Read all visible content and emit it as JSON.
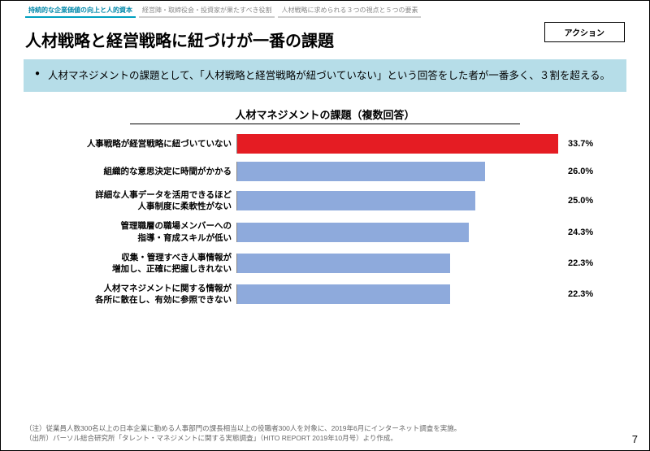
{
  "tabs": [
    {
      "label": "持続的な企業価値の向上と人的資本",
      "active": true
    },
    {
      "label": "経営陣・取締役会・投資家が果たすべき役割",
      "active": false
    },
    {
      "label": "人材戦略に求められる３つの視点と５つの要素",
      "active": false
    }
  ],
  "action_button": "アクション",
  "page_title": "人材戦略と経営戦略に紐づけが一番の課題",
  "summary": "人材マネジメントの課題として、「人材戦略と経営戦略が紐づいていない」という回答をした者が一番多く、３割を超える。",
  "chart": {
    "title": "人材マネジメントの課題（複数回答）",
    "type": "bar-horizontal",
    "max_value": 34,
    "default_color": "#8eaadc",
    "highlight_color": "#e51c23",
    "value_suffix": "%",
    "bars": [
      {
        "label": "人事戦略が経営戦略に紐づいていない",
        "value": 33.7,
        "highlight": true
      },
      {
        "label": "組織的な意思決定に時間がかかる",
        "value": 26.0,
        "highlight": false
      },
      {
        "label": "詳細な人事データを活用できるほど\n人事制度に柔軟性がない",
        "value": 25.0,
        "highlight": false
      },
      {
        "label": "管理職層の職場メンバーへの\n指導・育成スキルが低い",
        "value": 24.3,
        "highlight": false
      },
      {
        "label": "収集・管理すべき人事情報が\n増加し、正確に把握しきれない",
        "value": 22.3,
        "highlight": false
      },
      {
        "label": "人材マネジメントに関する情報が\n各所に散在し、有効に参照できない",
        "value": 22.3,
        "highlight": false
      }
    ]
  },
  "footnote1": "（注）従業員人数300名以上の日本企業に勤める人事部門の課長相当以上の役職者300人を対象に、2019年6月にインターネット調査を実施。",
  "footnote2": "（出所）パーソル総合研究所「タレント・マネジメントに関する実態調査」（HITO REPORT 2019年10月号）より作成。",
  "page_number": "7"
}
